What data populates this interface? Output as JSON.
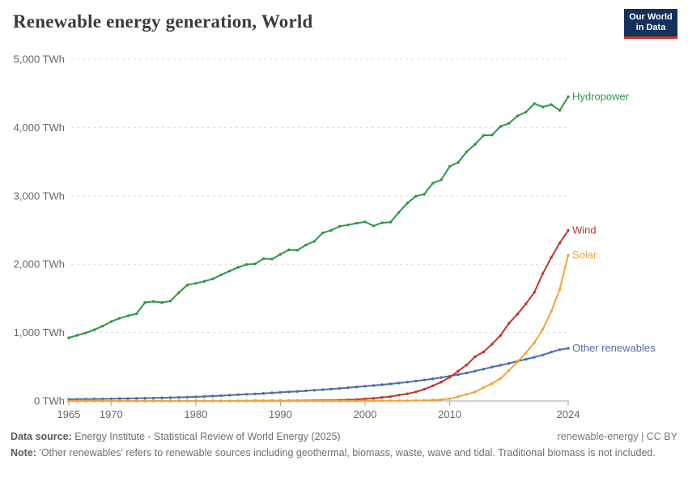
{
  "header": {
    "title": "Renewable energy generation, World",
    "logo_line1": "Our World",
    "logo_line2": "in Data",
    "logo_bg": "#13315c",
    "logo_accent": "#dc3224"
  },
  "chart_data": {
    "type": "line",
    "title": "Renewable energy generation, World",
    "xlabel": "",
    "ylabel": "TWh",
    "xlim": [
      1965,
      2024
    ],
    "ylim": [
      0,
      5000
    ],
    "grid": "dashed-horizontal",
    "legend_position": "line-end-labels",
    "x": [
      1965,
      1966,
      1967,
      1968,
      1969,
      1970,
      1971,
      1972,
      1973,
      1974,
      1975,
      1976,
      1977,
      1978,
      1979,
      1980,
      1981,
      1982,
      1983,
      1984,
      1985,
      1986,
      1987,
      1988,
      1989,
      1990,
      1991,
      1992,
      1993,
      1994,
      1995,
      1996,
      1997,
      1998,
      1999,
      2000,
      2001,
      2002,
      2003,
      2004,
      2005,
      2006,
      2007,
      2008,
      2009,
      2010,
      2011,
      2012,
      2013,
      2014,
      2015,
      2016,
      2017,
      2018,
      2019,
      2020,
      2021,
      2022,
      2023,
      2024
    ],
    "y_ticks": [
      {
        "value": 0,
        "label": "0 TWh"
      },
      {
        "value": 1000,
        "label": "1,000 TWh"
      },
      {
        "value": 2000,
        "label": "2,000 TWh"
      },
      {
        "value": 3000,
        "label": "3,000 TWh"
      },
      {
        "value": 4000,
        "label": "4,000 TWh"
      },
      {
        "value": 5000,
        "label": "5,000 TWh"
      }
    ],
    "x_ticks": [
      1965,
      1970,
      1980,
      1990,
      2000,
      2010,
      2024
    ],
    "series": [
      {
        "name": "Hydropower",
        "color": "#309645",
        "values": [
          923,
          960,
          995,
          1040,
          1095,
          1160,
          1210,
          1245,
          1275,
          1440,
          1455,
          1440,
          1460,
          1585,
          1695,
          1720,
          1750,
          1785,
          1845,
          1900,
          1955,
          1995,
          2005,
          2080,
          2075,
          2145,
          2210,
          2205,
          2280,
          2335,
          2460,
          2495,
          2555,
          2575,
          2600,
          2620,
          2560,
          2605,
          2615,
          2760,
          2895,
          2995,
          3025,
          3185,
          3235,
          3430,
          3490,
          3645,
          3755,
          3885,
          3890,
          4015,
          4060,
          4170,
          4225,
          4350,
          4300,
          4335,
          4250,
          4450
        ]
      },
      {
        "name": "Other renewables",
        "color": "#4e6ea7",
        "values": [
          25,
          26,
          27,
          28,
          30,
          32,
          34,
          36,
          38,
          40,
          43,
          46,
          49,
          52,
          56,
          60,
          65,
          71,
          77,
          84,
          91,
          97,
          103,
          110,
          118,
          126,
          133,
          140,
          148,
          156,
          165,
          174,
          184,
          194,
          205,
          216,
          226,
          237,
          249,
          262,
          276,
          291,
          307,
          324,
          342,
          362,
          385,
          410,
          437,
          466,
          497,
          523,
          550,
          580,
          610,
          640,
          672,
          715,
          750,
          770
        ]
      },
      {
        "name": "Wind",
        "color": "#c0362c",
        "values": [
          0,
          0,
          0,
          0,
          0,
          0,
          0,
          0,
          0,
          0,
          0,
          0,
          0,
          0,
          0,
          0,
          0,
          0,
          0,
          0,
          1,
          1,
          2,
          2,
          3,
          4,
          4,
          5,
          5,
          7,
          8,
          9,
          12,
          16,
          21,
          31,
          38,
          52,
          63,
          85,
          104,
          133,
          171,
          221,
          276,
          346,
          437,
          526,
          648,
          717,
          831,
          959,
          1136,
          1270,
          1420,
          1590,
          1862,
          2098,
          2310,
          2494
        ]
      },
      {
        "name": "Solar",
        "color": "#f2a33a",
        "values": [
          0,
          0,
          0,
          0,
          0,
          0,
          0,
          0,
          0,
          0,
          0,
          0,
          0,
          0,
          0,
          0,
          0,
          0,
          0,
          0,
          0,
          0,
          0,
          0,
          0,
          0,
          0,
          0,
          0,
          0,
          0,
          0,
          0,
          0,
          0,
          1,
          1,
          2,
          2,
          3,
          4,
          5,
          7,
          12,
          20,
          32,
          63,
          97,
          132,
          197,
          256,
          328,
          445,
          574,
          702,
          853,
          1048,
          1310,
          1631,
          2131
        ]
      }
    ]
  },
  "footer": {
    "datasource_label": "Data source:",
    "datasource_text": " Energy Institute - Statistical Review of World Energy (2025)",
    "license": "renewable-energy | CC BY",
    "note_label": "Note:",
    "note_text": " 'Other renewables' refers to renewable sources including geothermal, biomass, waste, wave and tidal. Traditional biomass is not included."
  }
}
